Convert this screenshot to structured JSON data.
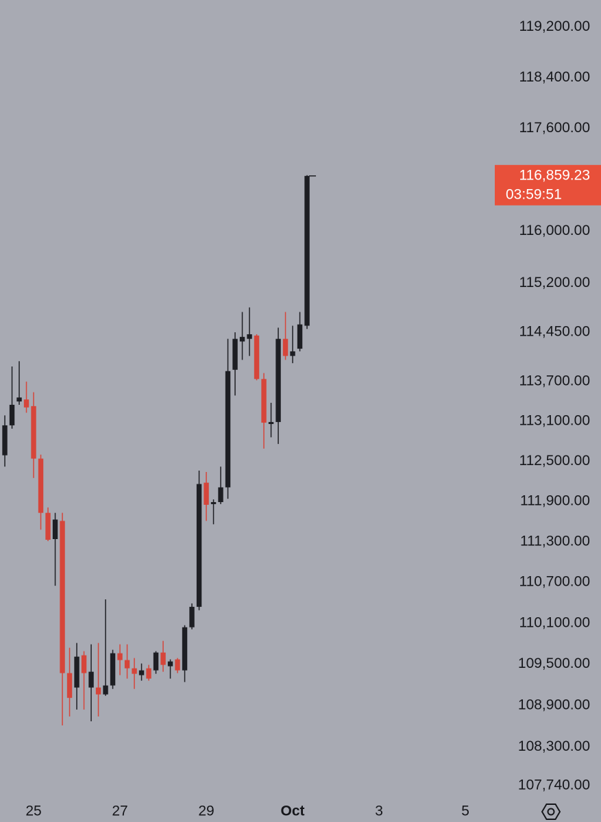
{
  "chart_data": {
    "type": "candlestick",
    "log_scale": true,
    "up_color": "#1d1e23",
    "down_color": "#d6453a",
    "x": [
      0,
      1,
      2,
      3,
      4,
      5,
      6,
      7,
      8,
      9,
      10,
      11,
      12,
      13,
      14,
      15,
      16,
      17,
      18,
      19,
      20,
      21,
      22,
      23,
      24,
      25,
      26,
      27,
      28,
      29,
      30,
      31,
      32,
      33,
      34,
      35,
      36,
      37,
      38,
      39,
      40,
      41,
      42
    ],
    "open": [
      112590,
      113040,
      113400,
      113430,
      113330,
      112540,
      111730,
      111340,
      111610,
      109370,
      109160,
      109630,
      109160,
      109160,
      109060,
      109190,
      109660,
      109560,
      109440,
      109340,
      109440,
      109410,
      109670,
      109470,
      109570,
      109410,
      110040,
      110340,
      112180,
      111860,
      111890,
      112110,
      113880,
      114310,
      114350,
      114400,
      113740,
      113060,
      113090,
      114350,
      114090,
      114200,
      114550
    ],
    "high": [
      113190,
      113930,
      114010,
      113700,
      113540,
      112600,
      111810,
      111730,
      111730,
      109740,
      109810,
      109690,
      109790,
      109810,
      110450,
      109710,
      109790,
      109790,
      109590,
      109510,
      109490,
      109690,
      109840,
      109570,
      109590,
      110070,
      110390,
      112360,
      112340,
      111930,
      112420,
      114350,
      114450,
      114760,
      114830,
      114420,
      113830,
      113380,
      114520,
      114760,
      114550,
      114760,
      116870
    ],
    "low": [
      112420,
      112990,
      113350,
      113230,
      112250,
      111480,
      111310,
      110650,
      108610,
      108740,
      108840,
      108840,
      108670,
      108740,
      109040,
      109140,
      109340,
      109290,
      109140,
      109260,
      109260,
      109360,
      109390,
      109290,
      109370,
      109240,
      110010,
      110290,
      111610,
      111560,
      111860,
      111940,
      113490,
      114030,
      114090,
      113720,
      112690,
      112860,
      112760,
      114030,
      113980,
      114160,
      114500
    ],
    "close": [
      113040,
      113350,
      113460,
      113310,
      112540,
      111730,
      111330,
      111630,
      109370,
      109010,
      109610,
      109370,
      109390,
      109060,
      109190,
      109660,
      109560,
      109440,
      109360,
      109410,
      109290,
      109670,
      109490,
      109540,
      109410,
      110040,
      110340,
      112160,
      111850,
      111890,
      112110,
      113860,
      114350,
      114380,
      114420,
      113740,
      113080,
      113090,
      114350,
      114090,
      114160,
      114570,
      116859.23
    ],
    "xlim": [
      -0.67,
      67.9
    ],
    "xticks": [
      {
        "value": 4,
        "label": "25"
      },
      {
        "value": 16,
        "label": "27"
      },
      {
        "value": 28,
        "label": "29"
      },
      {
        "value": 40,
        "label": "Oct"
      },
      {
        "value": 52,
        "label": "3"
      },
      {
        "value": 64,
        "label": "5"
      }
    ],
    "ylim": [
      107565,
      119630
    ],
    "yticks": [
      {
        "value": 119200,
        "label": "119,200.00"
      },
      {
        "value": 118400,
        "label": "118,400.00"
      },
      {
        "value": 117600,
        "label": "117,600.00"
      },
      {
        "value": 116000,
        "label": "116,000.00"
      },
      {
        "value": 115200,
        "label": "115,200.00"
      },
      {
        "value": 114450,
        "label": "114,450.00"
      },
      {
        "value": 113700,
        "label": "113,700.00"
      },
      {
        "value": 113100,
        "label": "113,100.00"
      },
      {
        "value": 112500,
        "label": "112,500.00"
      },
      {
        "value": 111900,
        "label": "111,900.00"
      },
      {
        "value": 111300,
        "label": "111,300.00"
      },
      {
        "value": 110700,
        "label": "110,700.00"
      },
      {
        "value": 110100,
        "label": "110,100.00"
      },
      {
        "value": 109500,
        "label": "109,500.00"
      },
      {
        "value": 108900,
        "label": "108,900.00"
      },
      {
        "value": 108300,
        "label": "108,300.00"
      },
      {
        "value": 107740,
        "label": "107,740.00"
      }
    ],
    "last_price": {
      "value": 116859.23,
      "label": "116,859.23"
    },
    "last_price_color": "#e8503a",
    "countdown": "03:59:51"
  }
}
